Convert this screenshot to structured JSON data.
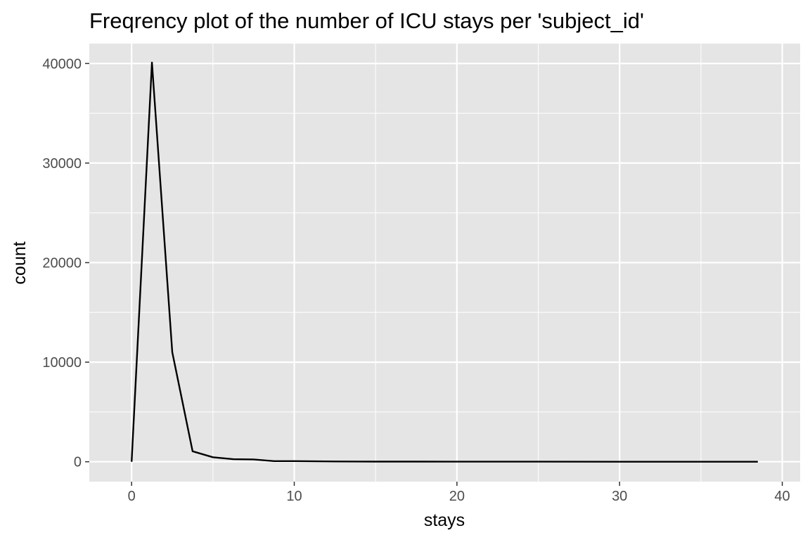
{
  "chart_data": {
    "type": "line",
    "title": "Freqrency plot of the number of ICU stays per 'subject_id'",
    "xlabel": "stays",
    "ylabel": "count",
    "xlim": [
      -2.6,
      41.1
    ],
    "ylim": [
      -2000,
      42000
    ],
    "x_ticks": [
      0,
      10,
      20,
      30,
      40
    ],
    "y_ticks": [
      0,
      10000,
      20000,
      30000,
      40000
    ],
    "x_tick_labels": [
      "0",
      "10",
      "20",
      "30",
      "40"
    ],
    "y_tick_labels": [
      "0",
      "10000",
      "20000",
      "30000",
      "40000"
    ],
    "x_minor": [
      5,
      15,
      25,
      35
    ],
    "y_minor": [
      5000,
      15000,
      25000,
      35000
    ],
    "grid": true,
    "background": "#e5e5e5",
    "grid_color": "#ffffff",
    "line_color": "#000000",
    "series": [
      {
        "x": [
          0,
          1.25,
          2.5,
          3.75,
          5.0,
          6.25,
          7.5,
          8.75,
          10.0,
          12.5,
          15.0,
          17.5,
          20.0,
          25.0,
          30.0,
          35.0,
          38.5
        ],
        "y": [
          0,
          40100,
          11000,
          1050,
          450,
          250,
          230,
          60,
          60,
          30,
          15,
          10,
          5,
          3,
          2,
          1,
          1
        ]
      }
    ]
  }
}
